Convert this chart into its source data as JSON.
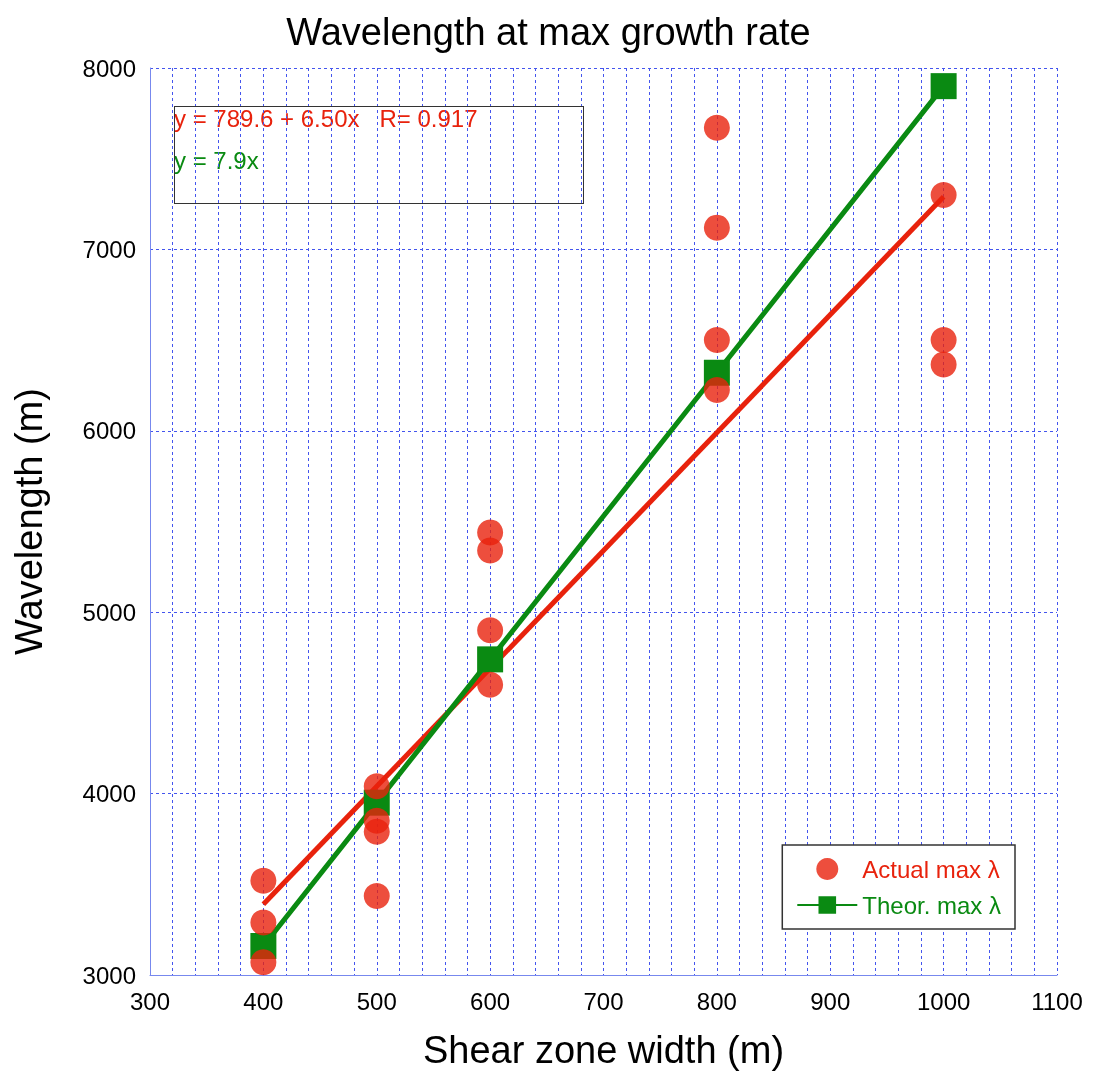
{
  "chart_data": {
    "type": "scatter",
    "title": "Wavelength at max growth rate",
    "xlabel": "Shear zone width (m)",
    "ylabel": "Wavelength (m)",
    "xlim": [
      300,
      1100
    ],
    "xticks": [
      300,
      400,
      500,
      600,
      700,
      800,
      900,
      1000,
      1100
    ],
    "ylim": [
      3000,
      8000
    ],
    "yticks": [
      3000,
      4000,
      5000,
      6000,
      7000,
      8000
    ],
    "grid": true,
    "legend": "bottom right",
    "annotations": [
      "y = 789.6 + 6.50x   R= 0.917",
      "y = 7.9x"
    ],
    "series": [
      {
        "name": "Actual max λ",
        "marker": "circle",
        "color": "#e8220c",
        "x": [
          400,
          400,
          400,
          500,
          500,
          500,
          500,
          600,
          600,
          600,
          600,
          800,
          800,
          800,
          800,
          1000,
          1000,
          1000
        ],
        "values": [
          3520,
          3290,
          3070,
          4040,
          3850,
          3790,
          3435,
          5440,
          5340,
          4900,
          4600,
          7670,
          7120,
          6500,
          6225,
          7300,
          6500,
          6365
        ]
      },
      {
        "type": "line",
        "marker": "none",
        "color": "#e8220c",
        "x": [
          400,
          1000
        ],
        "values": [
          3390,
          7290
        ]
      },
      {
        "name": "Theor. max λ",
        "type": "line",
        "marker": "square",
        "color": "#0a8a12",
        "x": [
          400,
          500,
          600,
          800,
          1000
        ],
        "values": [
          3160,
          3950,
          4740,
          6320,
          7900
        ]
      }
    ]
  }
}
